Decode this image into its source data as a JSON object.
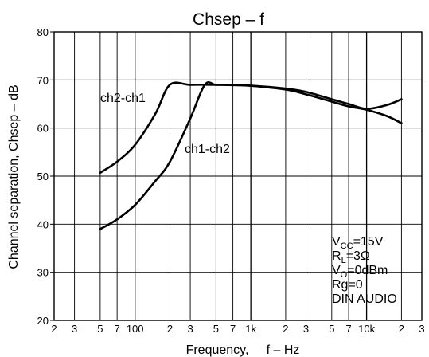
{
  "chart_data": {
    "type": "line",
    "title": "Chsep   –  f",
    "xlabel": "Frequency,     f – Hz",
    "ylabel": "Channel separation,    Chsep – dB",
    "x_scale": "log",
    "xlim": [
      20,
      30000
    ],
    "ylim": [
      20,
      80
    ],
    "x_tick_values": [
      20,
      30,
      50,
      70,
      100,
      200,
      300,
      500,
      700,
      1000,
      2000,
      3000,
      5000,
      7000,
      10000,
      20000,
      30000
    ],
    "x_tick_labels": [
      "2",
      "3",
      "5",
      "7",
      "100",
      "2",
      "3",
      "5",
      "7",
      "1k",
      "2",
      "3",
      "5",
      "7",
      "10k",
      "2",
      "3"
    ],
    "y_tick_values": [
      20,
      30,
      40,
      50,
      60,
      70,
      80
    ],
    "y_tick_labels": [
      "20",
      "30",
      "40",
      "50",
      "60",
      "70",
      "80"
    ],
    "grid": true,
    "series": [
      {
        "name": "ch2-ch1",
        "x": [
          50,
          70,
          100,
          150,
          200,
          300,
          500,
          1000,
          2000,
          3000,
          5000,
          7000,
          10000,
          15000,
          20000
        ],
        "y": [
          50.7,
          53,
          56.5,
          63,
          69,
          69,
          69,
          68.8,
          68.2,
          67.5,
          66,
          65,
          64,
          64.8,
          66
        ]
      },
      {
        "name": "ch1-ch2",
        "x": [
          50,
          70,
          100,
          150,
          200,
          300,
          400,
          500,
          700,
          1000,
          2000,
          3000,
          5000,
          7000,
          10000,
          15000,
          20000
        ],
        "y": [
          39,
          41,
          44,
          49,
          53,
          62,
          69,
          69,
          69,
          68.8,
          68,
          67,
          65.5,
          64.5,
          63.8,
          62.5,
          61
        ]
      }
    ],
    "annotations": {
      "ch2_ch1": "ch2-ch1",
      "ch1_ch2": "ch1-ch2"
    },
    "conditions": [
      {
        "main": "V",
        "sub": "CC",
        "rest": "=15V"
      },
      {
        "main": "R",
        "sub": "L",
        "rest": "=3Ω"
      },
      {
        "main": "V",
        "sub": "O",
        "rest": "=0dBm"
      },
      {
        "main": "Rg=0",
        "sub": "",
        "rest": ""
      },
      {
        "main": "DIN AUDIO",
        "sub": "",
        "rest": ""
      }
    ]
  }
}
